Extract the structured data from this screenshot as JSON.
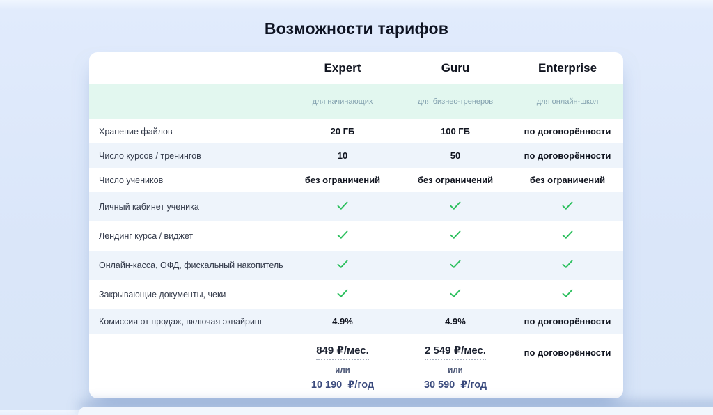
{
  "page": {
    "title": "Возможности тарифов"
  },
  "colors": {
    "page_background": "#dae6f9",
    "card_background": "#ffffff",
    "subtitle_row_background": "#e2f7ef",
    "alt_row_background": "#eef4fb",
    "check_green": "#2abf5c",
    "yearly_price_navy": "#3a4a7d",
    "heading_text": "#10141f"
  },
  "table": {
    "plans": [
      {
        "name": "Expert",
        "subtitle": "для начинающих"
      },
      {
        "name": "Guru",
        "subtitle": "для бизнес-тренеров"
      },
      {
        "name": "Enterprise",
        "subtitle": "для онлайн-школ"
      }
    ],
    "rows": [
      {
        "label": "Хранение файлов",
        "values": [
          "20 ГБ",
          "100 ГБ",
          "по договорённости"
        ]
      },
      {
        "label": "Число курсов / тренингов",
        "values": [
          "10",
          "50",
          "по договорённости"
        ]
      },
      {
        "label": "Число учеников",
        "values": [
          "без ограничений",
          "без ограничений",
          "без ограничений"
        ]
      },
      {
        "label": "Личный кабинет ученика",
        "values": [
          "check",
          "check",
          "check"
        ]
      },
      {
        "label": "Лендинг курса / виджет",
        "values": [
          "check",
          "check",
          "check"
        ]
      },
      {
        "label": "Онлайн-касса, ОФД, фискальный накопитель",
        "values": [
          "check",
          "check",
          "check"
        ]
      },
      {
        "label": "Закрывающие документы, чеки",
        "values": [
          "check",
          "check",
          "check"
        ]
      },
      {
        "label": "Комиссия от продаж, включая эквайринг",
        "values": [
          "4.9%",
          "4.9%",
          "по договорённости"
        ]
      }
    ],
    "pricing": [
      {
        "monthly": "849 ₽/мес.",
        "or": "или",
        "yearly": "10 190  ₽/год"
      },
      {
        "monthly": "2 549 ₽/мес.",
        "or": "или",
        "yearly": "30 590  ₽/год"
      },
      {
        "negotiable": "по договорённости"
      }
    ]
  }
}
